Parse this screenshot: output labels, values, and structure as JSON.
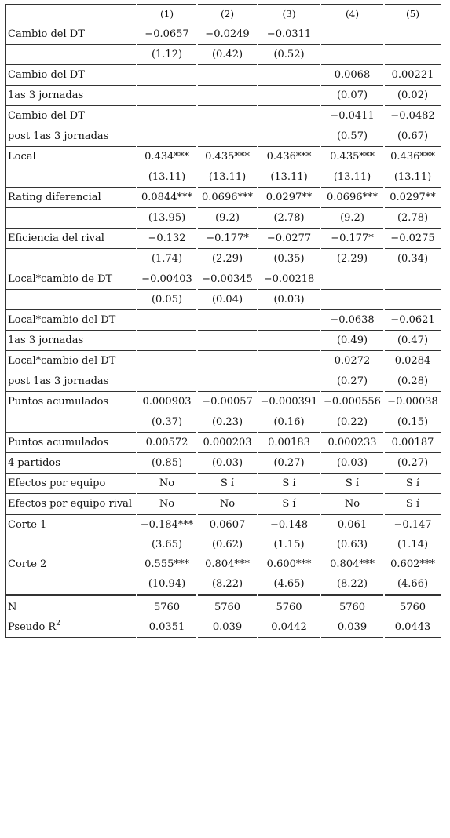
{
  "headers": [
    "",
    "(1)",
    "(2)",
    "(3)",
    "(4)",
    "(5)"
  ],
  "rows": [
    {
      "label": "Cambio del DT",
      "cells": [
        "−0.0657",
        "−0.0249",
        "−0.0311",
        "",
        ""
      ]
    },
    {
      "label": "",
      "cells": [
        "(1.12)",
        "(0.42)",
        "(0.52)",
        "",
        ""
      ]
    },
    {
      "label": "Cambio del DT",
      "cells": [
        "",
        "",
        "",
        "0.0068",
        "0.00221"
      ]
    },
    {
      "label": "1as 3 jornadas",
      "cells": [
        "",
        "",
        "",
        "(0.07)",
        "(0.02)"
      ]
    },
    {
      "label": "Cambio del DT",
      "cells": [
        "",
        "",
        "",
        "−0.0411",
        "−0.0482"
      ]
    },
    {
      "label": "post 1as 3 jornadas",
      "cells": [
        "",
        "",
        "",
        "(0.57)",
        "(0.67)"
      ]
    },
    {
      "label": "Local",
      "cells": [
        "0.434***",
        "0.435***",
        "0.436***",
        "0.435***",
        "0.436***"
      ]
    },
    {
      "label": "",
      "cells": [
        "(13.11)",
        "(13.11)",
        "(13.11)",
        "(13.11)",
        "(13.11)"
      ]
    },
    {
      "label": "Rating diferencial",
      "cells": [
        "0.0844***",
        "0.0696***",
        "0.0297**",
        "0.0696***",
        "0.0297**"
      ]
    },
    {
      "label": "",
      "cells": [
        "(13.95)",
        "(9.2)",
        "(2.78)",
        "(9.2)",
        "(2.78)"
      ]
    },
    {
      "label": "Eficiencia del rival",
      "cells": [
        "−0.132",
        "−0.177*",
        "−0.0277",
        "−0.177*",
        "−0.0275"
      ]
    },
    {
      "label": "",
      "cells": [
        "(1.74)",
        "(2.29)",
        "(0.35)",
        "(2.29)",
        "(0.34)"
      ]
    },
    {
      "label": "Local*cambio de DT",
      "cells": [
        "−0.00403",
        "−0.00345",
        "−0.00218",
        "",
        ""
      ]
    },
    {
      "label": "",
      "cells": [
        "(0.05)",
        "(0.04)",
        "(0.03)",
        "",
        ""
      ]
    },
    {
      "label": "Local*cambio del DT",
      "cells": [
        "",
        "",
        "",
        "−0.0638",
        "−0.0621"
      ]
    },
    {
      "label": "1as 3 jornadas",
      "cells": [
        "",
        "",
        "",
        "(0.49)",
        "(0.47)"
      ]
    },
    {
      "label": "Local*cambio del DT",
      "cells": [
        "",
        "",
        "",
        "0.0272",
        "0.0284"
      ]
    },
    {
      "label": "post 1as 3 jornadas",
      "cells": [
        "",
        "",
        "",
        "(0.27)",
        "(0.28)"
      ]
    },
    {
      "label": "Puntos acumulados",
      "cells": [
        "0.000903",
        "−0.00057",
        "−0.000391",
        "−0.000556",
        "−0.00038"
      ]
    },
    {
      "label": "",
      "cells": [
        "(0.37)",
        "(0.23)",
        "(0.16)",
        "(0.22)",
        "(0.15)"
      ]
    },
    {
      "label": "Puntos acumulados",
      "cells": [
        "0.00572",
        "0.000203",
        "0.00183",
        "0.000233",
        "0.00187"
      ]
    },
    {
      "label": "4 partidos",
      "cells": [
        "(0.85)",
        "(0.03)",
        "(0.27)",
        "(0.03)",
        "(0.27)"
      ]
    },
    {
      "label": "Efectos por equipo",
      "cells": [
        "No",
        "S í",
        "S í",
        "S í",
        "S í"
      ]
    },
    {
      "label": "Efectos por equipo rival",
      "cells": [
        "No",
        "No",
        "S í",
        "No",
        "S í"
      ]
    },
    {
      "label": "Corte 1",
      "cells": [
        "−0.184***",
        "0.0607",
        "−0.148",
        "0.061",
        "−0.147"
      ]
    },
    {
      "label": "",
      "cells": [
        "(3.65)",
        "(0.62)",
        "(1.15)",
        "(0.63)",
        "(1.14)"
      ]
    },
    {
      "label": "Corte 2",
      "cells": [
        "0.555***",
        "0.804***",
        "0.600***",
        "0.804***",
        "0.602***"
      ]
    },
    {
      "label": "",
      "cells": [
        "(10.94)",
        "(8.22)",
        "(4.65)",
        "(8.22)",
        "(4.66)"
      ]
    },
    {
      "label": "N",
      "cells": [
        "5760",
        "5760",
        "5760",
        "5760",
        "5760"
      ]
    },
    {
      "label": "Pseudo R",
      "label_sup": "2",
      "cells": [
        "0.0351",
        "0.039",
        "0.0442",
        "0.039",
        "0.0443"
      ]
    }
  ]
}
